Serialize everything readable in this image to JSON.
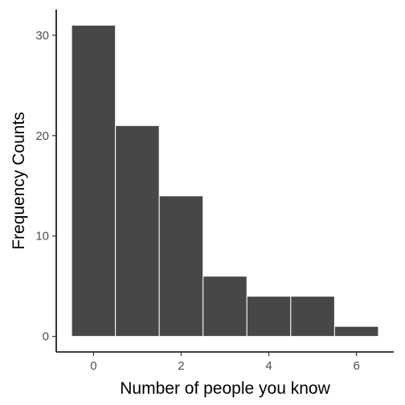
{
  "chart_data": {
    "type": "bar",
    "subtype": "histogram",
    "title": "",
    "xlabel": "Number of people you know",
    "ylabel": "Frequency Counts",
    "bin_width": 1,
    "bins": [
      {
        "center": 0,
        "count": 31
      },
      {
        "center": 1,
        "count": 21
      },
      {
        "center": 2,
        "count": 14
      },
      {
        "center": 3,
        "count": 6
      },
      {
        "center": 4,
        "count": 4
      },
      {
        "center": 5,
        "count": 4
      },
      {
        "center": 6,
        "count": 1
      }
    ],
    "x_ticks": [
      0,
      2,
      4,
      6
    ],
    "y_ticks": [
      0,
      10,
      20,
      30
    ],
    "xlim": [
      -0.85,
      6.85
    ],
    "ylim": [
      -1.55,
      32.55
    ],
    "grid": false,
    "legend": "none",
    "colors": {
      "bar_fill": "#474747",
      "bar_outline": "#ffffff",
      "axis": "#000000",
      "tick_text": "#4d4d4d"
    }
  }
}
